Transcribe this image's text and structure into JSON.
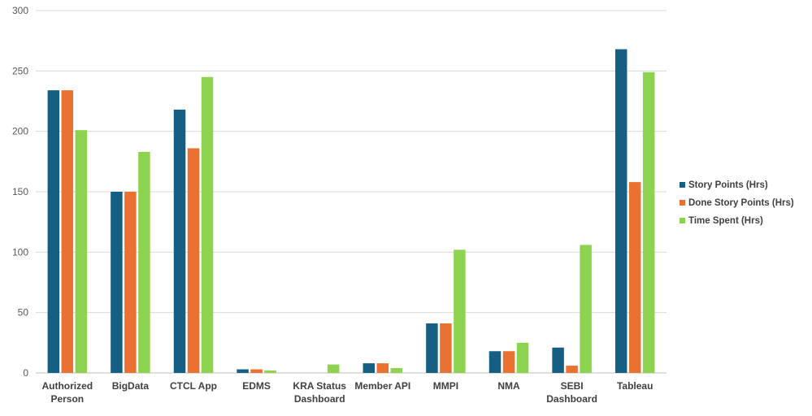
{
  "chart_data": {
    "type": "bar",
    "categories": [
      [
        "Authorized",
        "Person"
      ],
      [
        "BigData"
      ],
      [
        "CTCL App"
      ],
      [
        "EDMS"
      ],
      [
        "KRA Status",
        "Dashboard"
      ],
      [
        "Member API"
      ],
      [
        "MMPI"
      ],
      [
        "NMA"
      ],
      [
        "SEBI",
        "Dashboard"
      ],
      [
        "Tableau"
      ]
    ],
    "series": [
      {
        "name": "Story Points (Hrs)",
        "color": "#156082",
        "values": [
          234,
          150,
          218,
          3,
          0,
          8,
          41,
          18,
          21,
          268
        ]
      },
      {
        "name": "Done Story Points (Hrs)",
        "color": "#E97132",
        "values": [
          234,
          150,
          186,
          3,
          0,
          8,
          41,
          18,
          6,
          158
        ]
      },
      {
        "name": "Time Spent (Hrs)",
        "color": "#8ED350",
        "values": [
          201,
          183,
          245,
          2,
          7,
          4,
          102,
          25,
          106,
          249
        ]
      }
    ],
    "yticks": [
      0,
      50,
      100,
      150,
      200,
      250,
      300
    ],
    "ylim": [
      0,
      300
    ],
    "grid": true,
    "legend": "right"
  }
}
